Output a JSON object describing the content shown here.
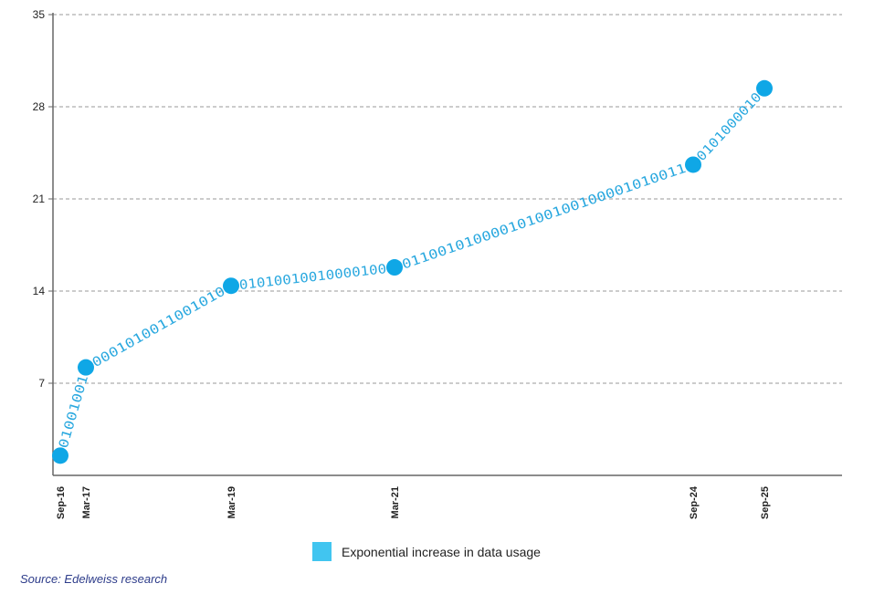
{
  "chart_data": {
    "type": "line",
    "ylim": [
      0,
      35
    ],
    "yticks": [
      7,
      14,
      21,
      28,
      35
    ],
    "grid": true,
    "points": [
      {
        "label": "Sep-16",
        "y": 1.5
      },
      {
        "label": "Mar-17",
        "y": 8.2
      },
      {
        "label": "Mar-19",
        "y": 14.4
      },
      {
        "label": "Mar-21",
        "y": 15.8
      },
      {
        "label": "Sep-24",
        "y": 23.6
      },
      {
        "label": "Sep-25",
        "y": 29.4
      }
    ],
    "segment_binary": [
      "01001001",
      "0001010011001010",
      "01010010010000100",
      "01100101000010100100100001010011",
      "0101000010"
    ],
    "colors": {
      "point": "#0fa7e6",
      "binary": "#29a8df",
      "legend": "#41c5f0"
    },
    "legend": {
      "label": "Exponential increase in data usage",
      "position": "bottom-center"
    },
    "source": "Source: Edelweiss research"
  }
}
